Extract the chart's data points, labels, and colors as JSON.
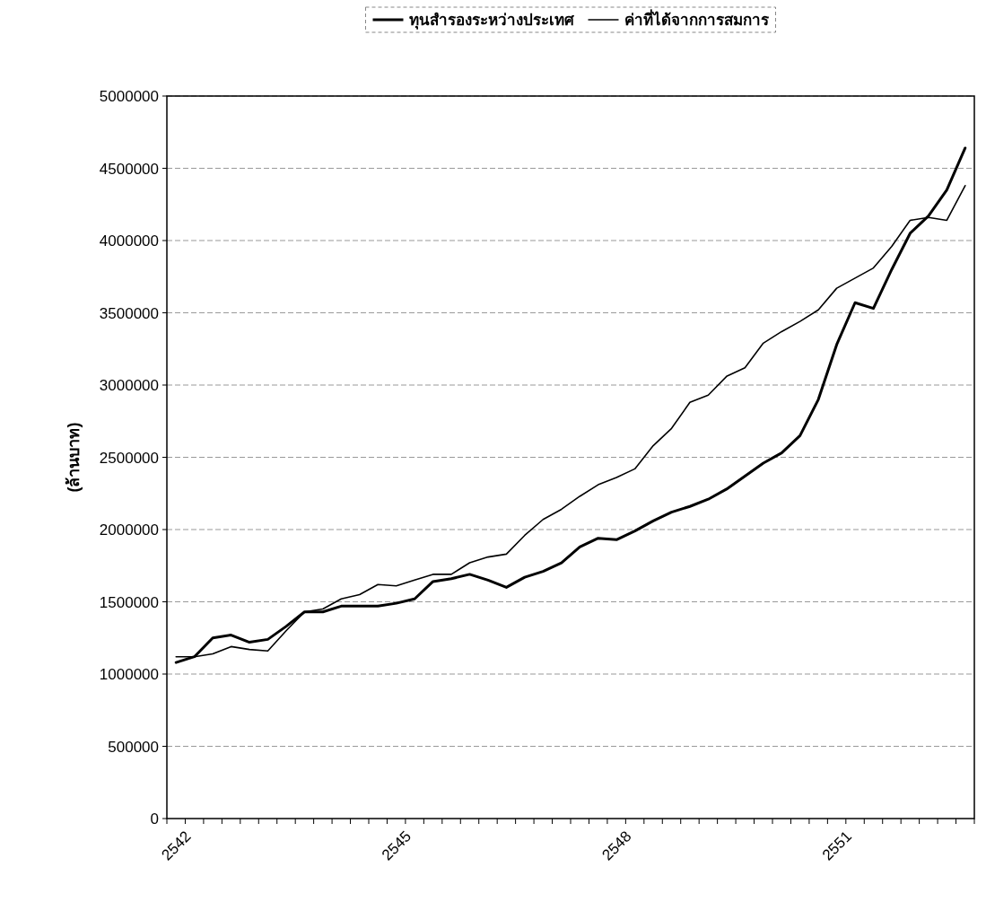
{
  "chart_data": {
    "type": "line",
    "ylabel": "(ล้านบาท)",
    "categories": [
      "2542",
      null,
      null,
      null,
      null,
      null,
      null,
      null,
      null,
      null,
      null,
      null,
      "2545",
      null,
      null,
      null,
      null,
      null,
      null,
      null,
      null,
      null,
      null,
      null,
      "2548",
      null,
      null,
      null,
      null,
      null,
      null,
      null,
      null,
      null,
      null,
      null,
      "2551",
      null,
      null,
      null,
      null,
      null,
      null,
      null
    ],
    "ylim": [
      0,
      5000000
    ],
    "yticks": [
      0,
      500000,
      1000000,
      1500000,
      2000000,
      2500000,
      3000000,
      3500000,
      4000000,
      4500000,
      5000000
    ],
    "grid": "y",
    "legend": "top",
    "marker": "none",
    "line_style": "solid",
    "series": [
      {
        "name": "ทุนสำรองระหว่างประเทศ",
        "color": "#000000",
        "values": [
          1080000,
          1120000,
          1250000,
          1270000,
          1220000,
          1240000,
          1330000,
          1430000,
          1430000,
          1470000,
          1470000,
          1470000,
          1490000,
          1520000,
          1640000,
          1660000,
          1690000,
          1650000,
          1600000,
          1670000,
          1710000,
          1770000,
          1880000,
          1940000,
          1930000,
          1990000,
          2060000,
          2120000,
          2160000,
          2210000,
          2280000,
          2370000,
          2460000,
          2530000,
          2650000,
          2900000,
          3280000,
          3570000,
          3530000,
          3800000,
          4050000,
          4170000,
          4350000,
          4640000
        ]
      },
      {
        "name": "ค่าที่ได้จากการสมการ",
        "color": "#000000",
        "values": [
          1120000,
          1120000,
          1140000,
          1190000,
          1170000,
          1160000,
          1300000,
          1430000,
          1450000,
          1520000,
          1550000,
          1620000,
          1610000,
          1650000,
          1690000,
          1690000,
          1770000,
          1810000,
          1830000,
          1960000,
          2070000,
          2140000,
          2230000,
          2310000,
          2360000,
          2420000,
          2580000,
          2700000,
          2880000,
          2930000,
          3060000,
          3120000,
          3290000,
          3370000,
          3440000,
          3520000,
          3670000,
          3740000,
          3810000,
          3960000,
          4140000,
          4160000,
          4140000,
          4380000
        ]
      }
    ]
  }
}
